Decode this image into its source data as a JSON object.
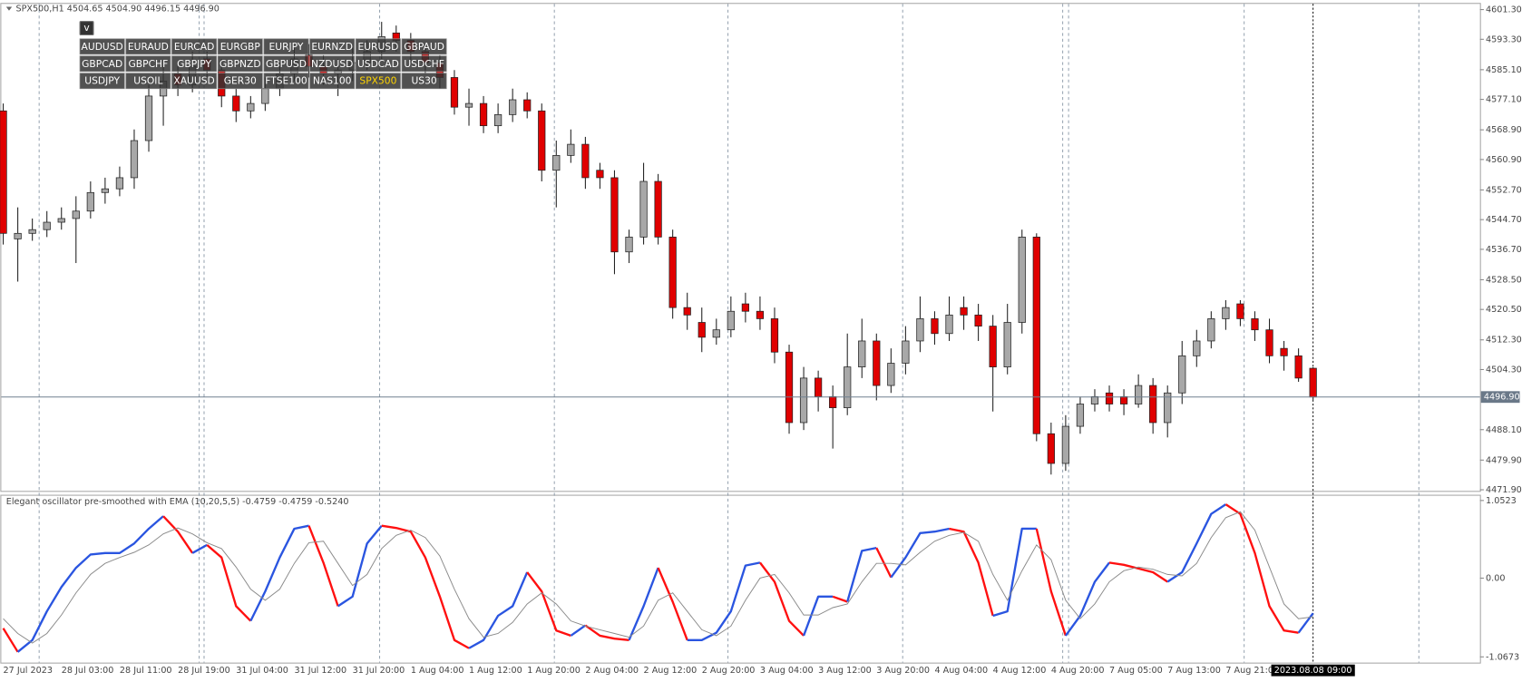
{
  "header": "SPX500,H1 4504.65 4504.90 4496.15 4496.90",
  "symbol_buttons": {
    "toggle": "v",
    "active": "SPX500",
    "rows": [
      [
        "AUDUSD",
        "EURAUD",
        "EURCAD",
        "EURGBP",
        "EURJPY",
        "EURNZD",
        "EURUSD",
        "GBPAUD"
      ],
      [
        "GBPCAD",
        "GBPCHF",
        "GBPJPY",
        "GBPNZD",
        "GBPUSD",
        "NZDUSD",
        "USDCAD",
        "USDCHF"
      ],
      [
        "USDJPY",
        "USOIL",
        "XAUUSD",
        "GER30",
        "FTSE100",
        "NAS100",
        "SPX500",
        "US30"
      ]
    ]
  },
  "chart_data": [
    {
      "type": "candlestick",
      "up_color": "#a8a8a8",
      "down_color": "#e00000",
      "categories": [
        "27 Jul 2023",
        null,
        null,
        null,
        "28 Jul 03:00",
        null,
        null,
        null,
        "28 Jul 11:00",
        null,
        null,
        null,
        "28 Jul 19:00",
        null,
        null,
        null,
        "31 Jul 04:00",
        null,
        null,
        null,
        "31 Jul 12:00",
        null,
        null,
        null,
        "31 Jul 20:00",
        null,
        null,
        null,
        "1 Aug 04:00",
        null,
        null,
        null,
        "1 Aug 12:00",
        null,
        null,
        null,
        "1 Aug 20:00",
        null,
        null,
        null,
        "2 Aug 04:00",
        null,
        null,
        null,
        "2 Aug 12:00",
        null,
        null,
        null,
        "2 Aug 20:00",
        null,
        null,
        null,
        "3 Aug 04:00",
        null,
        null,
        null,
        "3 Aug 12:00",
        null,
        null,
        null,
        "3 Aug 20:00",
        null,
        null,
        null,
        "4 Aug 04:00",
        null,
        null,
        null,
        "4 Aug 12:00",
        null,
        null,
        null,
        "4 Aug 20:00",
        null,
        null,
        null,
        "7 Aug 05:00",
        null,
        null,
        null,
        "7 Aug 13:00",
        null,
        null,
        null,
        "7 Aug 21:00",
        null,
        null,
        null,
        null,
        null,
        "2023.08.08 09:00"
      ],
      "open": [
        4574,
        4539.5,
        4541,
        4542,
        4544,
        4545,
        4547,
        4552,
        4553,
        4556,
        4566,
        4578,
        4584,
        4581,
        4588,
        4585,
        4578,
        4574,
        4576,
        4580,
        4584,
        4589,
        4586,
        4584,
        4585,
        4587,
        4590,
        4595,
        4593,
        4590,
        4587,
        4583,
        4575,
        4576,
        4570,
        4573,
        4577,
        4574,
        4558,
        4562,
        4565,
        4558,
        4556,
        4536,
        4540,
        4555,
        4540,
        4521,
        4517,
        4513,
        4515,
        4522,
        4520,
        4518,
        4509,
        4490,
        4502,
        4497,
        4494,
        4505,
        4512,
        4500,
        4506,
        4512,
        4518,
        4514,
        4521,
        4519,
        4516,
        4505,
        4517,
        4540,
        4487,
        4479,
        4489,
        4495,
        4498,
        4497,
        4495,
        4500,
        4490,
        4498,
        4508,
        4512,
        4518,
        4522,
        4518,
        4515,
        4510,
        4508,
        4504.65
      ],
      "high": [
        4576,
        4548,
        4545,
        4547,
        4548,
        4551,
        4555,
        4556,
        4559,
        4569,
        4581,
        4586,
        4586,
        4590,
        4590,
        4588,
        4580,
        4578,
        4583,
        4587,
        4591,
        4592,
        4589,
        4588,
        4591,
        4593,
        4598,
        4597,
        4595,
        4592,
        4589,
        4585,
        4580,
        4578,
        4576,
        4580,
        4579,
        4576,
        4566,
        4569,
        4567,
        4560,
        4558,
        4542,
        4560,
        4557,
        4542,
        4525,
        4521,
        4518,
        4524,
        4525,
        4524,
        4521,
        4511,
        4505,
        4504,
        4500,
        4514,
        4518,
        4514,
        4510,
        4516,
        4524,
        4520,
        4524,
        4524,
        4522,
        4519,
        4522,
        4542,
        4541,
        4490,
        4492,
        4497,
        4499,
        4500,
        4499,
        4503,
        4502,
        4500,
        4512,
        4515,
        4520,
        4523,
        4523,
        4520,
        4518,
        4512,
        4510,
        4504.9
      ],
      "low": [
        4538,
        4528,
        4539,
        4540,
        4542,
        4533,
        4545,
        4549,
        4551,
        4553,
        4563,
        4570,
        4578,
        4579,
        4583,
        4575,
        4571,
        4572,
        4574,
        4578,
        4582,
        4583,
        4581,
        4578,
        4582,
        4585,
        4588,
        4590,
        4587,
        4584,
        4580,
        4573,
        4570,
        4568,
        4568,
        4571,
        4572,
        4555,
        4548,
        4560,
        4553,
        4553,
        4530,
        4533,
        4538,
        4538,
        4518,
        4515,
        4509,
        4511,
        4513,
        4517,
        4515,
        4506,
        4487,
        4488,
        4493,
        4483,
        4492,
        4502,
        4496,
        4498,
        4503,
        4509,
        4511,
        4512,
        4515,
        4512,
        4493,
        4503,
        4514,
        4485,
        4476,
        4477,
        4487,
        4493,
        4493,
        4492,
        4494,
        4487,
        4486,
        4495,
        4505,
        4510,
        4515,
        4516,
        4512,
        4506,
        4504,
        4501,
        4496.15
      ],
      "close": [
        4541,
        4541,
        4542,
        4544,
        4545,
        4547,
        4552,
        4553,
        4556,
        4566,
        4578,
        4582,
        4581,
        4586,
        4585,
        4578,
        4574,
        4576,
        4580,
        4584,
        4588,
        4586,
        4584,
        4585,
        4587,
        4590,
        4594,
        4593,
        4590,
        4587,
        4583,
        4575,
        4576,
        4570,
        4573,
        4577,
        4574,
        4558,
        4562,
        4565,
        4556,
        4556,
        4536,
        4540,
        4555,
        4540,
        4521,
        4519,
        4513,
        4515,
        4520,
        4520,
        4518,
        4509,
        4490,
        4502,
        4497,
        4494,
        4505,
        4512,
        4500,
        4506,
        4512,
        4518,
        4514,
        4519,
        4519,
        4516,
        4505,
        4517,
        4540,
        4487,
        4479,
        4489,
        4495,
        4497,
        4495,
        4495,
        4500,
        4490,
        4498,
        4508,
        4512,
        4518,
        4521,
        4518,
        4515,
        4508,
        4508,
        4502,
        4496.9
      ],
      "last_price": {
        "value": 4496.9,
        "label": "4496.90"
      },
      "ylim": [
        4471.6,
        4603.1
      ],
      "yticks": [
        {
          "value": 4601.3,
          "label": "4601.30"
        },
        {
          "value": 4593.3,
          "label": "4593.30"
        },
        {
          "value": 4585.1,
          "label": "4585.10"
        },
        {
          "value": 4577.1,
          "label": "4577.10"
        },
        {
          "value": 4568.9,
          "label": "4568.90"
        },
        {
          "value": 4560.9,
          "label": "4560.90"
        },
        {
          "value": 4552.7,
          "label": "4552.70"
        },
        {
          "value": 4544.7,
          "label": "4544.70"
        },
        {
          "value": 4536.7,
          "label": "4536.70"
        },
        {
          "value": 4528.5,
          "label": "4528.50"
        },
        {
          "value": 4520.5,
          "label": "4520.50"
        },
        {
          "value": 4512.3,
          "label": "4512.30"
        },
        {
          "value": 4504.3,
          "label": "4504.30"
        },
        {
          "value": 4488.1,
          "label": "4488.10"
        },
        {
          "value": 4479.9,
          "label": "4479.90"
        },
        {
          "value": 4471.9,
          "label": "4471.90"
        }
      ]
    },
    {
      "type": "line",
      "title": "Elegant oscillator pre-smoothed with EMA (10,20,5,5) -0.4759 -0.4759 -0.5240",
      "ylim": [
        -1.145,
        1.13
      ],
      "yticks": [
        1.0523,
        {
          "value": 0,
          "label": "0.00"
        },
        -1.0673
      ],
      "series": [
        {
          "color": "#2a55e0",
          "down_color": "#ff1010",
          "values": [
            -0.68,
            -1.0,
            -0.84,
            -0.45,
            -0.12,
            0.14,
            0.32,
            0.34,
            0.34,
            0.47,
            0.67,
            0.84,
            0.63,
            0.34,
            0.45,
            0.28,
            -0.38,
            -0.58,
            -0.18,
            0.28,
            0.67,
            0.71,
            0.21,
            -0.38,
            -0.25,
            0.47,
            0.71,
            0.68,
            0.63,
            0.28,
            -0.25,
            -0.84,
            -0.95,
            -0.84,
            -0.51,
            -0.38,
            0.08,
            -0.18,
            -0.71,
            -0.78,
            -0.64,
            -0.78,
            -0.82,
            -0.84,
            -0.38,
            0.14,
            -0.32,
            -0.84,
            -0.84,
            -0.74,
            -0.45,
            0.17,
            0.21,
            -0.05,
            -0.58,
            -0.78,
            -0.25,
            -0.25,
            -0.32,
            0.37,
            0.41,
            0.01,
            0.28,
            0.61,
            0.63,
            0.67,
            0.63,
            0.21,
            -0.51,
            -0.45,
            0.67,
            0.67,
            -0.18,
            -0.78,
            -0.51,
            -0.05,
            0.21,
            0.18,
            0.13,
            0.08,
            -0.05,
            0.08,
            0.47,
            0.87,
            1.0,
            0.87,
            0.34,
            -0.38,
            -0.71,
            -0.74,
            -0.4759
          ]
        },
        {
          "color": "#8a8a8a",
          "values": [
            -0.55,
            -0.75,
            -0.88,
            -0.75,
            -0.5,
            -0.2,
            0.05,
            0.2,
            0.28,
            0.35,
            0.45,
            0.6,
            0.68,
            0.6,
            0.48,
            0.4,
            0.15,
            -0.15,
            -0.3,
            -0.15,
            0.2,
            0.48,
            0.5,
            0.2,
            -0.1,
            0.05,
            0.4,
            0.58,
            0.65,
            0.55,
            0.3,
            -0.15,
            -0.55,
            -0.8,
            -0.75,
            -0.6,
            -0.35,
            -0.2,
            -0.35,
            -0.58,
            -0.65,
            -0.7,
            -0.75,
            -0.8,
            -0.65,
            -0.3,
            -0.2,
            -0.45,
            -0.7,
            -0.78,
            -0.65,
            -0.3,
            0.0,
            0.05,
            -0.2,
            -0.5,
            -0.5,
            -0.4,
            -0.35,
            -0.05,
            0.2,
            0.2,
            0.18,
            0.35,
            0.5,
            0.58,
            0.62,
            0.5,
            0.05,
            -0.3,
            0.1,
            0.45,
            0.25,
            -0.3,
            -0.55,
            -0.35,
            -0.05,
            0.1,
            0.15,
            0.12,
            0.05,
            0.03,
            0.2,
            0.55,
            0.82,
            0.9,
            0.65,
            0.15,
            -0.35,
            -0.55,
            -0.524
          ]
        }
      ]
    }
  ]
}
